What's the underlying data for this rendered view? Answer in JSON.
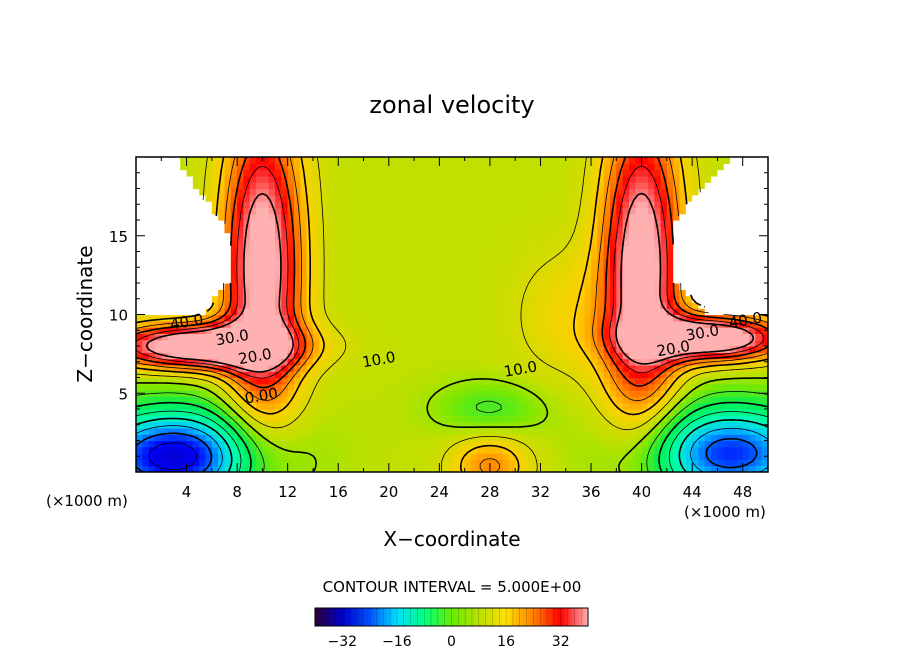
{
  "chart_data": {
    "type": "heatmap",
    "title": "zonal velocity",
    "xlabel": "X−coordinate",
    "ylabel": "Z−coordinate",
    "x_unit_left": "(×1000 m)",
    "x_unit_right": "(×1000 m)",
    "xlim": [
      0,
      50
    ],
    "ylim": [
      0,
      20
    ],
    "x_ticks": [
      4,
      8,
      12,
      16,
      20,
      24,
      28,
      32,
      36,
      40,
      44,
      48
    ],
    "y_ticks": [
      5,
      10,
      15
    ],
    "contour_interval_text": "CONTOUR INTERVAL = 5.000E+00",
    "contour_labels": [
      {
        "text": "40.0",
        "x": 4.0,
        "y": 9.6
      },
      {
        "text": "30.0",
        "x": 7.6,
        "y": 8.6
      },
      {
        "text": "20.0",
        "x": 9.4,
        "y": 7.4
      },
      {
        "text": "10.0",
        "x": 19.2,
        "y": 7.2
      },
      {
        "text": "0.00",
        "x": 9.9,
        "y": 4.9
      },
      {
        "text": "10.0",
        "x": 30.4,
        "y": 6.6
      },
      {
        "text": "20.0",
        "x": 42.5,
        "y": 7.9
      },
      {
        "text": "30.0",
        "x": 44.8,
        "y": 8.9
      },
      {
        "text": "40.0",
        "x": 48.2,
        "y": 9.7
      }
    ],
    "colorbar": {
      "range": [
        -40,
        40
      ],
      "ticks": [
        -32,
        -16,
        0,
        16,
        32
      ],
      "colors": [
        "#2a0033",
        "#0000cc",
        "#0050ff",
        "#00e0ff",
        "#00ff80",
        "#66ee00",
        "#b8e000",
        "#ffe000",
        "#ff8000",
        "#ff0000",
        "#ffb0b0"
      ]
    },
    "value_scale": {
      "-40": "#1a0040",
      "-25": "#0000ff",
      "-15": "#00c8ff",
      "-8": "#00ffb0",
      "0": "#00ee50",
      "8": "#80e800",
      "12": "#c0e000",
      "20": "#ffd000",
      "28": "#ff7000",
      "34": "#ff0000",
      "38": "#ff5050",
      "42": "#ffb0b0"
    }
  }
}
